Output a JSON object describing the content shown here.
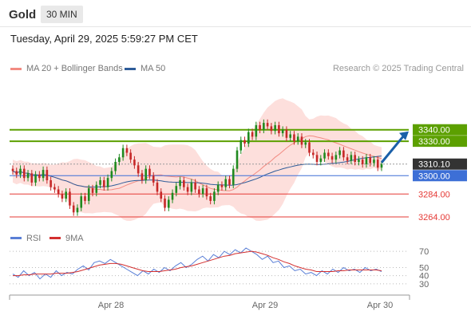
{
  "header": {
    "symbol": "Gold",
    "interval": "30 MIN",
    "timestamp": "Tuesday, April 29, 2025 5:59:27 PM CET"
  },
  "legend": {
    "ma20_label": "MA 20 + Bollinger Bands",
    "ma20_color": "#f28b82",
    "ma50_label": "MA 50",
    "ma50_color": "#2e5c99",
    "copyright": "Research © 2025 Trading Central"
  },
  "colors": {
    "up": "#1f8a1f",
    "down": "#c62828",
    "band": "#fdd9d6",
    "resistance": "#5ca000",
    "support_blue": "#3d6fd6",
    "support_red": "#e53935",
    "arrow": "#1a5fa8",
    "rsi": "#5a7fd6",
    "rsi_ma": "#d32f2f"
  },
  "chart_data": [
    {
      "type": "candlestick",
      "title": "Gold",
      "interval": "30 MIN",
      "x_ticks": [
        "Apr 28",
        "Apr 29",
        "Apr 30"
      ],
      "y_range": [
        3255,
        3385
      ],
      "ohlc_close_path": [
        3304,
        3301,
        3306,
        3298,
        3302,
        3294,
        3301,
        3298,
        3305,
        3296,
        3290,
        3288,
        3284,
        3280,
        3286,
        3274,
        3268,
        3272,
        3282,
        3278,
        3289,
        3285,
        3292,
        3296,
        3290,
        3298,
        3304,
        3312,
        3316,
        3324,
        3320,
        3314,
        3309,
        3302,
        3296,
        3306,
        3300,
        3294,
        3286,
        3280,
        3272,
        3279,
        3285,
        3291,
        3296,
        3290,
        3286,
        3294,
        3288,
        3284,
        3289,
        3282,
        3278,
        3286,
        3292,
        3290,
        3297,
        3292,
        3306,
        3322,
        3331,
        3328,
        3338,
        3334,
        3344,
        3340,
        3346,
        3343,
        3339,
        3344,
        3337,
        3340,
        3333,
        3336,
        3330,
        3334,
        3327,
        3329,
        3320,
        3318,
        3312,
        3315,
        3320,
        3317,
        3314,
        3318,
        3322,
        3316,
        3313,
        3318,
        3312,
        3314,
        3310,
        3316,
        3311,
        3314,
        3307,
        3310
      ],
      "ma20_last": 3316,
      "ma50_last": 3326,
      "levels": [
        {
          "value": 3340.0,
          "label": "3340.00",
          "kind": "resistance"
        },
        {
          "value": 3330.0,
          "label": "3330.00",
          "kind": "resistance"
        },
        {
          "value": 3310.1,
          "label": "3310.10",
          "kind": "last"
        },
        {
          "value": 3300.0,
          "label": "3300.00",
          "kind": "support"
        },
        {
          "value": 3284.0,
          "label": "3284.00",
          "kind": "support"
        },
        {
          "value": 3264.0,
          "label": "3264.00",
          "kind": "support"
        }
      ],
      "forecast_arrow": {
        "from": 3310,
        "to": 3340,
        "direction": "up"
      }
    },
    {
      "type": "line",
      "title": "RSI",
      "legend": [
        "RSI",
        "9MA"
      ],
      "y_ticks": [
        70,
        50,
        40,
        30
      ],
      "y_range": [
        20,
        75
      ],
      "series": [
        {
          "name": "RSI",
          "values": [
            42,
            38,
            46,
            40,
            44,
            36,
            42,
            38,
            46,
            40,
            44,
            42,
            48,
            52,
            47,
            56,
            58,
            55,
            60,
            56,
            52,
            48,
            44,
            40,
            46,
            42,
            48,
            44,
            50,
            46,
            52,
            56,
            50,
            54,
            60,
            64,
            58,
            66,
            62,
            70,
            66,
            72,
            68,
            74,
            70,
            66,
            60,
            64,
            56,
            58,
            50,
            52,
            46,
            48,
            42,
            44,
            40,
            46,
            42,
            48,
            44,
            50,
            46,
            48,
            44,
            50,
            46,
            48,
            45
          ]
        },
        {
          "name": "9MA",
          "values": [
            40,
            40,
            41,
            41,
            42,
            42,
            42,
            42,
            43,
            43,
            43,
            44,
            45,
            47,
            49,
            51,
            53,
            54,
            55,
            55,
            54,
            52,
            50,
            48,
            46,
            45,
            45,
            45,
            46,
            47,
            48,
            50,
            51,
            52,
            54,
            56,
            58,
            60,
            62,
            64,
            65,
            67,
            68,
            69,
            70,
            69,
            67,
            65,
            62,
            60,
            57,
            55,
            52,
            50,
            48,
            47,
            45,
            45,
            45,
            45,
            46,
            46,
            47,
            47,
            47,
            47,
            47,
            47,
            46
          ]
        }
      ]
    }
  ]
}
